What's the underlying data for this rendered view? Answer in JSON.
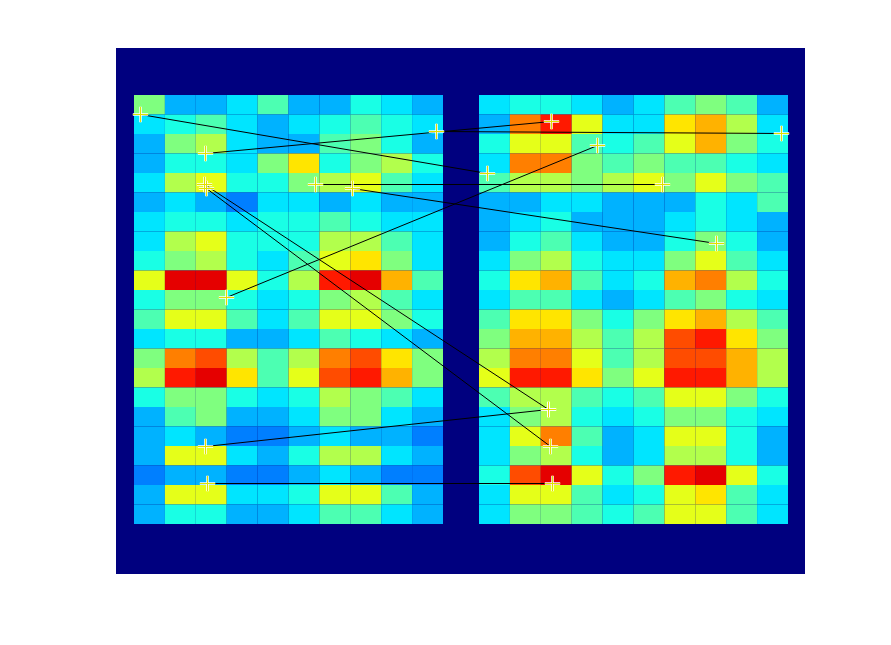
{
  "chart_data": {
    "type": "heatmap",
    "xlim": [
      0,
      689
    ],
    "ylim": [
      0,
      526
    ],
    "tick_labels": false,
    "zlim": [
      0,
      1
    ],
    "images": [
      {
        "extent": [
          18,
          327,
          47,
          476
        ],
        "values": [
          [
            0.5,
            0.3,
            0.3,
            0.35,
            0.45,
            0.3,
            0.3,
            0.4,
            0.35,
            0.3
          ],
          [
            0.35,
            0.4,
            0.45,
            0.35,
            0.3,
            0.35,
            0.4,
            0.45,
            0.4,
            0.35
          ],
          [
            0.3,
            0.5,
            0.55,
            0.35,
            0.3,
            0.3,
            0.45,
            0.5,
            0.4,
            0.3
          ],
          [
            0.3,
            0.4,
            0.4,
            0.35,
            0.5,
            0.65,
            0.4,
            0.5,
            0.55,
            0.4
          ],
          [
            0.35,
            0.55,
            0.6,
            0.4,
            0.4,
            0.5,
            0.55,
            0.6,
            0.45,
            0.35
          ],
          [
            0.3,
            0.35,
            0.3,
            0.25,
            0.35,
            0.35,
            0.3,
            0.35,
            0.3,
            0.3
          ],
          [
            0.35,
            0.4,
            0.4,
            0.35,
            0.4,
            0.4,
            0.45,
            0.4,
            0.35,
            0.35
          ],
          [
            0.35,
            0.55,
            0.6,
            0.4,
            0.4,
            0.4,
            0.55,
            0.55,
            0.45,
            0.35
          ],
          [
            0.4,
            0.5,
            0.55,
            0.4,
            0.35,
            0.45,
            0.6,
            0.65,
            0.5,
            0.35
          ],
          [
            0.6,
            0.9,
            0.9,
            0.6,
            0.4,
            0.55,
            0.85,
            0.9,
            0.7,
            0.45
          ],
          [
            0.4,
            0.5,
            0.5,
            0.4,
            0.35,
            0.4,
            0.5,
            0.55,
            0.45,
            0.35
          ],
          [
            0.45,
            0.6,
            0.6,
            0.45,
            0.35,
            0.45,
            0.6,
            0.6,
            0.5,
            0.4
          ],
          [
            0.35,
            0.4,
            0.4,
            0.3,
            0.3,
            0.35,
            0.45,
            0.4,
            0.35,
            0.3
          ],
          [
            0.5,
            0.75,
            0.8,
            0.55,
            0.45,
            0.55,
            0.75,
            0.8,
            0.65,
            0.5
          ],
          [
            0.55,
            0.85,
            0.9,
            0.65,
            0.45,
            0.6,
            0.8,
            0.85,
            0.7,
            0.5
          ],
          [
            0.4,
            0.5,
            0.5,
            0.4,
            0.35,
            0.4,
            0.55,
            0.5,
            0.45,
            0.35
          ],
          [
            0.3,
            0.45,
            0.5,
            0.3,
            0.3,
            0.35,
            0.5,
            0.5,
            0.35,
            0.3
          ],
          [
            0.3,
            0.35,
            0.3,
            0.25,
            0.25,
            0.3,
            0.35,
            0.3,
            0.3,
            0.25
          ],
          [
            0.3,
            0.6,
            0.6,
            0.35,
            0.3,
            0.4,
            0.55,
            0.55,
            0.35,
            0.3
          ],
          [
            0.25,
            0.3,
            0.3,
            0.25,
            0.25,
            0.3,
            0.35,
            0.3,
            0.25,
            0.25
          ],
          [
            0.3,
            0.6,
            0.6,
            0.35,
            0.35,
            0.4,
            0.6,
            0.6,
            0.45,
            0.3
          ],
          [
            0.3,
            0.4,
            0.4,
            0.3,
            0.3,
            0.35,
            0.45,
            0.45,
            0.35,
            0.3
          ]
        ]
      },
      {
        "extent": [
          363,
          672,
          47,
          476
        ],
        "values": [
          [
            0.35,
            0.4,
            0.4,
            0.35,
            0.3,
            0.35,
            0.45,
            0.5,
            0.45,
            0.3
          ],
          [
            0.3,
            0.75,
            0.85,
            0.6,
            0.35,
            0.35,
            0.65,
            0.7,
            0.55,
            0.35
          ],
          [
            0.4,
            0.6,
            0.6,
            0.45,
            0.4,
            0.45,
            0.6,
            0.7,
            0.5,
            0.4
          ],
          [
            0.35,
            0.75,
            0.75,
            0.5,
            0.45,
            0.5,
            0.45,
            0.45,
            0.4,
            0.35
          ],
          [
            0.45,
            0.55,
            0.55,
            0.5,
            0.55,
            0.6,
            0.5,
            0.6,
            0.5,
            0.45
          ],
          [
            0.3,
            0.3,
            0.35,
            0.35,
            0.3,
            0.3,
            0.3,
            0.4,
            0.35,
            0.45
          ],
          [
            0.3,
            0.35,
            0.4,
            0.3,
            0.3,
            0.3,
            0.35,
            0.4,
            0.35,
            0.3
          ],
          [
            0.3,
            0.4,
            0.45,
            0.35,
            0.3,
            0.3,
            0.4,
            0.5,
            0.4,
            0.3
          ],
          [
            0.35,
            0.5,
            0.55,
            0.4,
            0.35,
            0.35,
            0.5,
            0.6,
            0.45,
            0.35
          ],
          [
            0.4,
            0.65,
            0.7,
            0.45,
            0.35,
            0.4,
            0.7,
            0.75,
            0.55,
            0.4
          ],
          [
            0.35,
            0.45,
            0.45,
            0.35,
            0.3,
            0.35,
            0.45,
            0.5,
            0.4,
            0.35
          ],
          [
            0.45,
            0.65,
            0.65,
            0.5,
            0.4,
            0.5,
            0.65,
            0.7,
            0.55,
            0.45
          ],
          [
            0.5,
            0.7,
            0.7,
            0.55,
            0.45,
            0.55,
            0.8,
            0.85,
            0.65,
            0.5
          ],
          [
            0.55,
            0.75,
            0.75,
            0.6,
            0.45,
            0.55,
            0.8,
            0.8,
            0.7,
            0.55
          ],
          [
            0.6,
            0.85,
            0.85,
            0.65,
            0.5,
            0.6,
            0.85,
            0.85,
            0.7,
            0.55
          ],
          [
            0.45,
            0.55,
            0.55,
            0.45,
            0.4,
            0.45,
            0.6,
            0.6,
            0.5,
            0.4
          ],
          [
            0.35,
            0.5,
            0.55,
            0.4,
            0.35,
            0.4,
            0.5,
            0.5,
            0.4,
            0.35
          ],
          [
            0.35,
            0.6,
            0.75,
            0.45,
            0.3,
            0.35,
            0.6,
            0.6,
            0.4,
            0.3
          ],
          [
            0.35,
            0.5,
            0.55,
            0.4,
            0.3,
            0.35,
            0.55,
            0.55,
            0.4,
            0.3
          ],
          [
            0.4,
            0.8,
            0.9,
            0.6,
            0.4,
            0.5,
            0.85,
            0.9,
            0.6,
            0.4
          ],
          [
            0.35,
            0.6,
            0.6,
            0.45,
            0.35,
            0.4,
            0.6,
            0.65,
            0.45,
            0.35
          ],
          [
            0.35,
            0.5,
            0.5,
            0.45,
            0.4,
            0.45,
            0.6,
            0.6,
            0.45,
            0.35
          ]
        ]
      }
    ],
    "matches": {
      "color": "#000000",
      "marker": "plus",
      "line_style": "solid",
      "pairs": [
        [
          24,
          66,
          371,
          125
        ],
        [
          89,
          105,
          435,
          73
        ],
        [
          320,
          83,
          665,
          85
        ],
        [
          199,
          136,
          546,
          136
        ],
        [
          236,
          140,
          600,
          195
        ],
        [
          110,
          249,
          481,
          97
        ],
        [
          88,
          136,
          432,
          361
        ],
        [
          90,
          140,
          434,
          398
        ],
        [
          89,
          398,
          432,
          361
        ],
        [
          91,
          435,
          436,
          435
        ]
      ]
    }
  }
}
